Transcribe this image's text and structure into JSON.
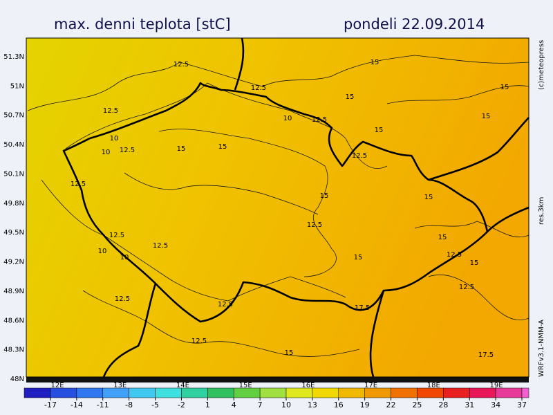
{
  "header": {
    "title": "max. denni teplota [stC]",
    "date": "pondeli 22.09.2014"
  },
  "map": {
    "lat_labels": [
      "51.3N",
      "51N",
      "50.7N",
      "50.4N",
      "50.1N",
      "49.8N",
      "49.5N",
      "49.2N",
      "48.9N",
      "48.6N",
      "48.3N",
      "48N"
    ],
    "lon_labels": [
      "12E",
      "13E",
      "14E",
      "15E",
      "16E",
      "17E",
      "18E",
      "19E"
    ],
    "contour_labels": [
      12.5,
      15,
      12.5,
      15,
      15,
      12.5,
      10,
      12.5,
      15,
      15,
      10,
      12.5,
      10,
      15,
      15,
      12.5,
      12.5,
      15,
      15,
      12.5,
      12.5,
      12.5,
      15,
      10,
      10,
      15,
      12.5,
      15,
      12.5,
      12.5,
      12.5,
      17.5,
      12.5,
      15,
      17.5
    ]
  },
  "colorbar": {
    "ticks": [
      -17,
      -14,
      -11,
      -8,
      -5,
      -2,
      1,
      4,
      7,
      10,
      13,
      16,
      19,
      22,
      25,
      28,
      31,
      34,
      37
    ],
    "colors": [
      "#2020c0",
      "#2850e0",
      "#3078f0",
      "#40a0f8",
      "#40c8f0",
      "#40e0e0",
      "#30d0a0",
      "#30c060",
      "#60d040",
      "#a0e040",
      "#e0e820",
      "#f0d800",
      "#f0b800",
      "#f09800",
      "#f07000",
      "#f04800",
      "#e82020",
      "#e81858",
      "#e83898",
      "#f060d0"
    ]
  },
  "side": {
    "copyright": "(c)meteopress",
    "resolution": "res.3km",
    "model": "WRFv3.1-NMM-A"
  }
}
